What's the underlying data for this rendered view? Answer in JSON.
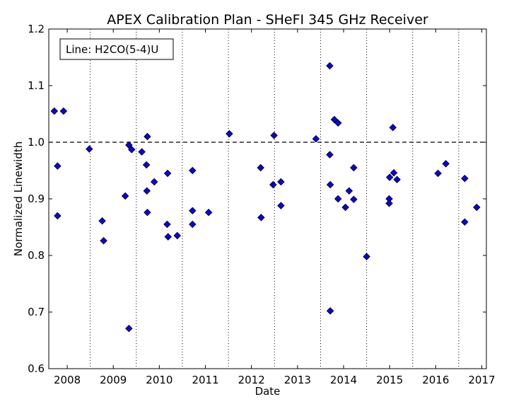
{
  "chart_data": {
    "type": "scatter",
    "title": "APEX Calibration Plan - SHeFI 345 GHz Receiver",
    "xlabel": "Date",
    "ylabel": "Normalized Linewidth",
    "annotation": "Line: H2CO(5-4)U",
    "xlim": [
      2007.6,
      2017.1
    ],
    "ylim": [
      0.6,
      1.2
    ],
    "x_ticks": [
      2008,
      2009,
      2010,
      2011,
      2012,
      2013,
      2014,
      2015,
      2016,
      2017
    ],
    "x_tick_labels": [
      "2008",
      "2009",
      "2010",
      "2011",
      "2012",
      "2013",
      "2014",
      "2015",
      "2016",
      "2017"
    ],
    "y_ticks": [
      0.6,
      0.7,
      0.8,
      0.9,
      1.0,
      1.1,
      1.2
    ],
    "y_tick_labels": [
      "0.6",
      "0.7",
      "0.8",
      "0.9",
      "1.0",
      "1.1",
      "1.2"
    ],
    "vertical_dotted_lines": [
      2008.5,
      2009.5,
      2010.5,
      2011.5,
      2012.5,
      2013.5,
      2014.5,
      2015.5,
      2016.5
    ],
    "reference_line_y": 1.0,
    "marker_color": "#0000ff",
    "points": [
      {
        "x": 2007.72,
        "y": 1.055
      },
      {
        "x": 2007.79,
        "y": 0.958
      },
      {
        "x": 2007.79,
        "y": 0.87
      },
      {
        "x": 2007.92,
        "y": 1.055
      },
      {
        "x": 2008.48,
        "y": 0.988
      },
      {
        "x": 2008.76,
        "y": 0.861
      },
      {
        "x": 2008.79,
        "y": 0.826
      },
      {
        "x": 2009.26,
        "y": 0.905
      },
      {
        "x": 2009.34,
        "y": 0.995
      },
      {
        "x": 2009.4,
        "y": 0.987
      },
      {
        "x": 2009.34,
        "y": 0.671
      },
      {
        "x": 2009.62,
        "y": 0.983
      },
      {
        "x": 2009.74,
        "y": 1.01
      },
      {
        "x": 2009.72,
        "y": 0.96
      },
      {
        "x": 2009.73,
        "y": 0.914
      },
      {
        "x": 2009.74,
        "y": 0.876
      },
      {
        "x": 2009.89,
        "y": 0.93
      },
      {
        "x": 2010.18,
        "y": 0.945
      },
      {
        "x": 2010.17,
        "y": 0.855
      },
      {
        "x": 2010.19,
        "y": 0.833
      },
      {
        "x": 2010.39,
        "y": 0.835
      },
      {
        "x": 2010.72,
        "y": 0.95
      },
      {
        "x": 2010.72,
        "y": 0.879
      },
      {
        "x": 2010.72,
        "y": 0.855
      },
      {
        "x": 2011.07,
        "y": 0.876
      },
      {
        "x": 2011.52,
        "y": 1.015
      },
      {
        "x": 2012.2,
        "y": 0.955
      },
      {
        "x": 2012.21,
        "y": 0.867
      },
      {
        "x": 2012.49,
        "y": 1.012
      },
      {
        "x": 2012.47,
        "y": 0.925
      },
      {
        "x": 2012.64,
        "y": 0.93
      },
      {
        "x": 2012.64,
        "y": 0.888
      },
      {
        "x": 2013.4,
        "y": 1.006
      },
      {
        "x": 2013.7,
        "y": 1.135
      },
      {
        "x": 2013.7,
        "y": 0.978
      },
      {
        "x": 2013.71,
        "y": 0.925
      },
      {
        "x": 2013.71,
        "y": 0.702
      },
      {
        "x": 2013.8,
        "y": 1.04
      },
      {
        "x": 2013.88,
        "y": 1.034
      },
      {
        "x": 2013.88,
        "y": 0.9
      },
      {
        "x": 2014.04,
        "y": 0.885
      },
      {
        "x": 2014.12,
        "y": 0.914
      },
      {
        "x": 2014.22,
        "y": 0.955
      },
      {
        "x": 2014.22,
        "y": 0.899
      },
      {
        "x": 2014.5,
        "y": 0.798
      },
      {
        "x": 2015.0,
        "y": 0.938
      },
      {
        "x": 2015.09,
        "y": 0.946
      },
      {
        "x": 2015.07,
        "y": 1.026
      },
      {
        "x": 2014.99,
        "y": 0.9
      },
      {
        "x": 2014.99,
        "y": 0.892
      },
      {
        "x": 2015.16,
        "y": 0.934
      },
      {
        "x": 2016.05,
        "y": 0.945
      },
      {
        "x": 2016.22,
        "y": 0.962
      },
      {
        "x": 2016.63,
        "y": 0.936
      },
      {
        "x": 2016.63,
        "y": 0.859
      },
      {
        "x": 2016.89,
        "y": 0.885
      }
    ]
  }
}
